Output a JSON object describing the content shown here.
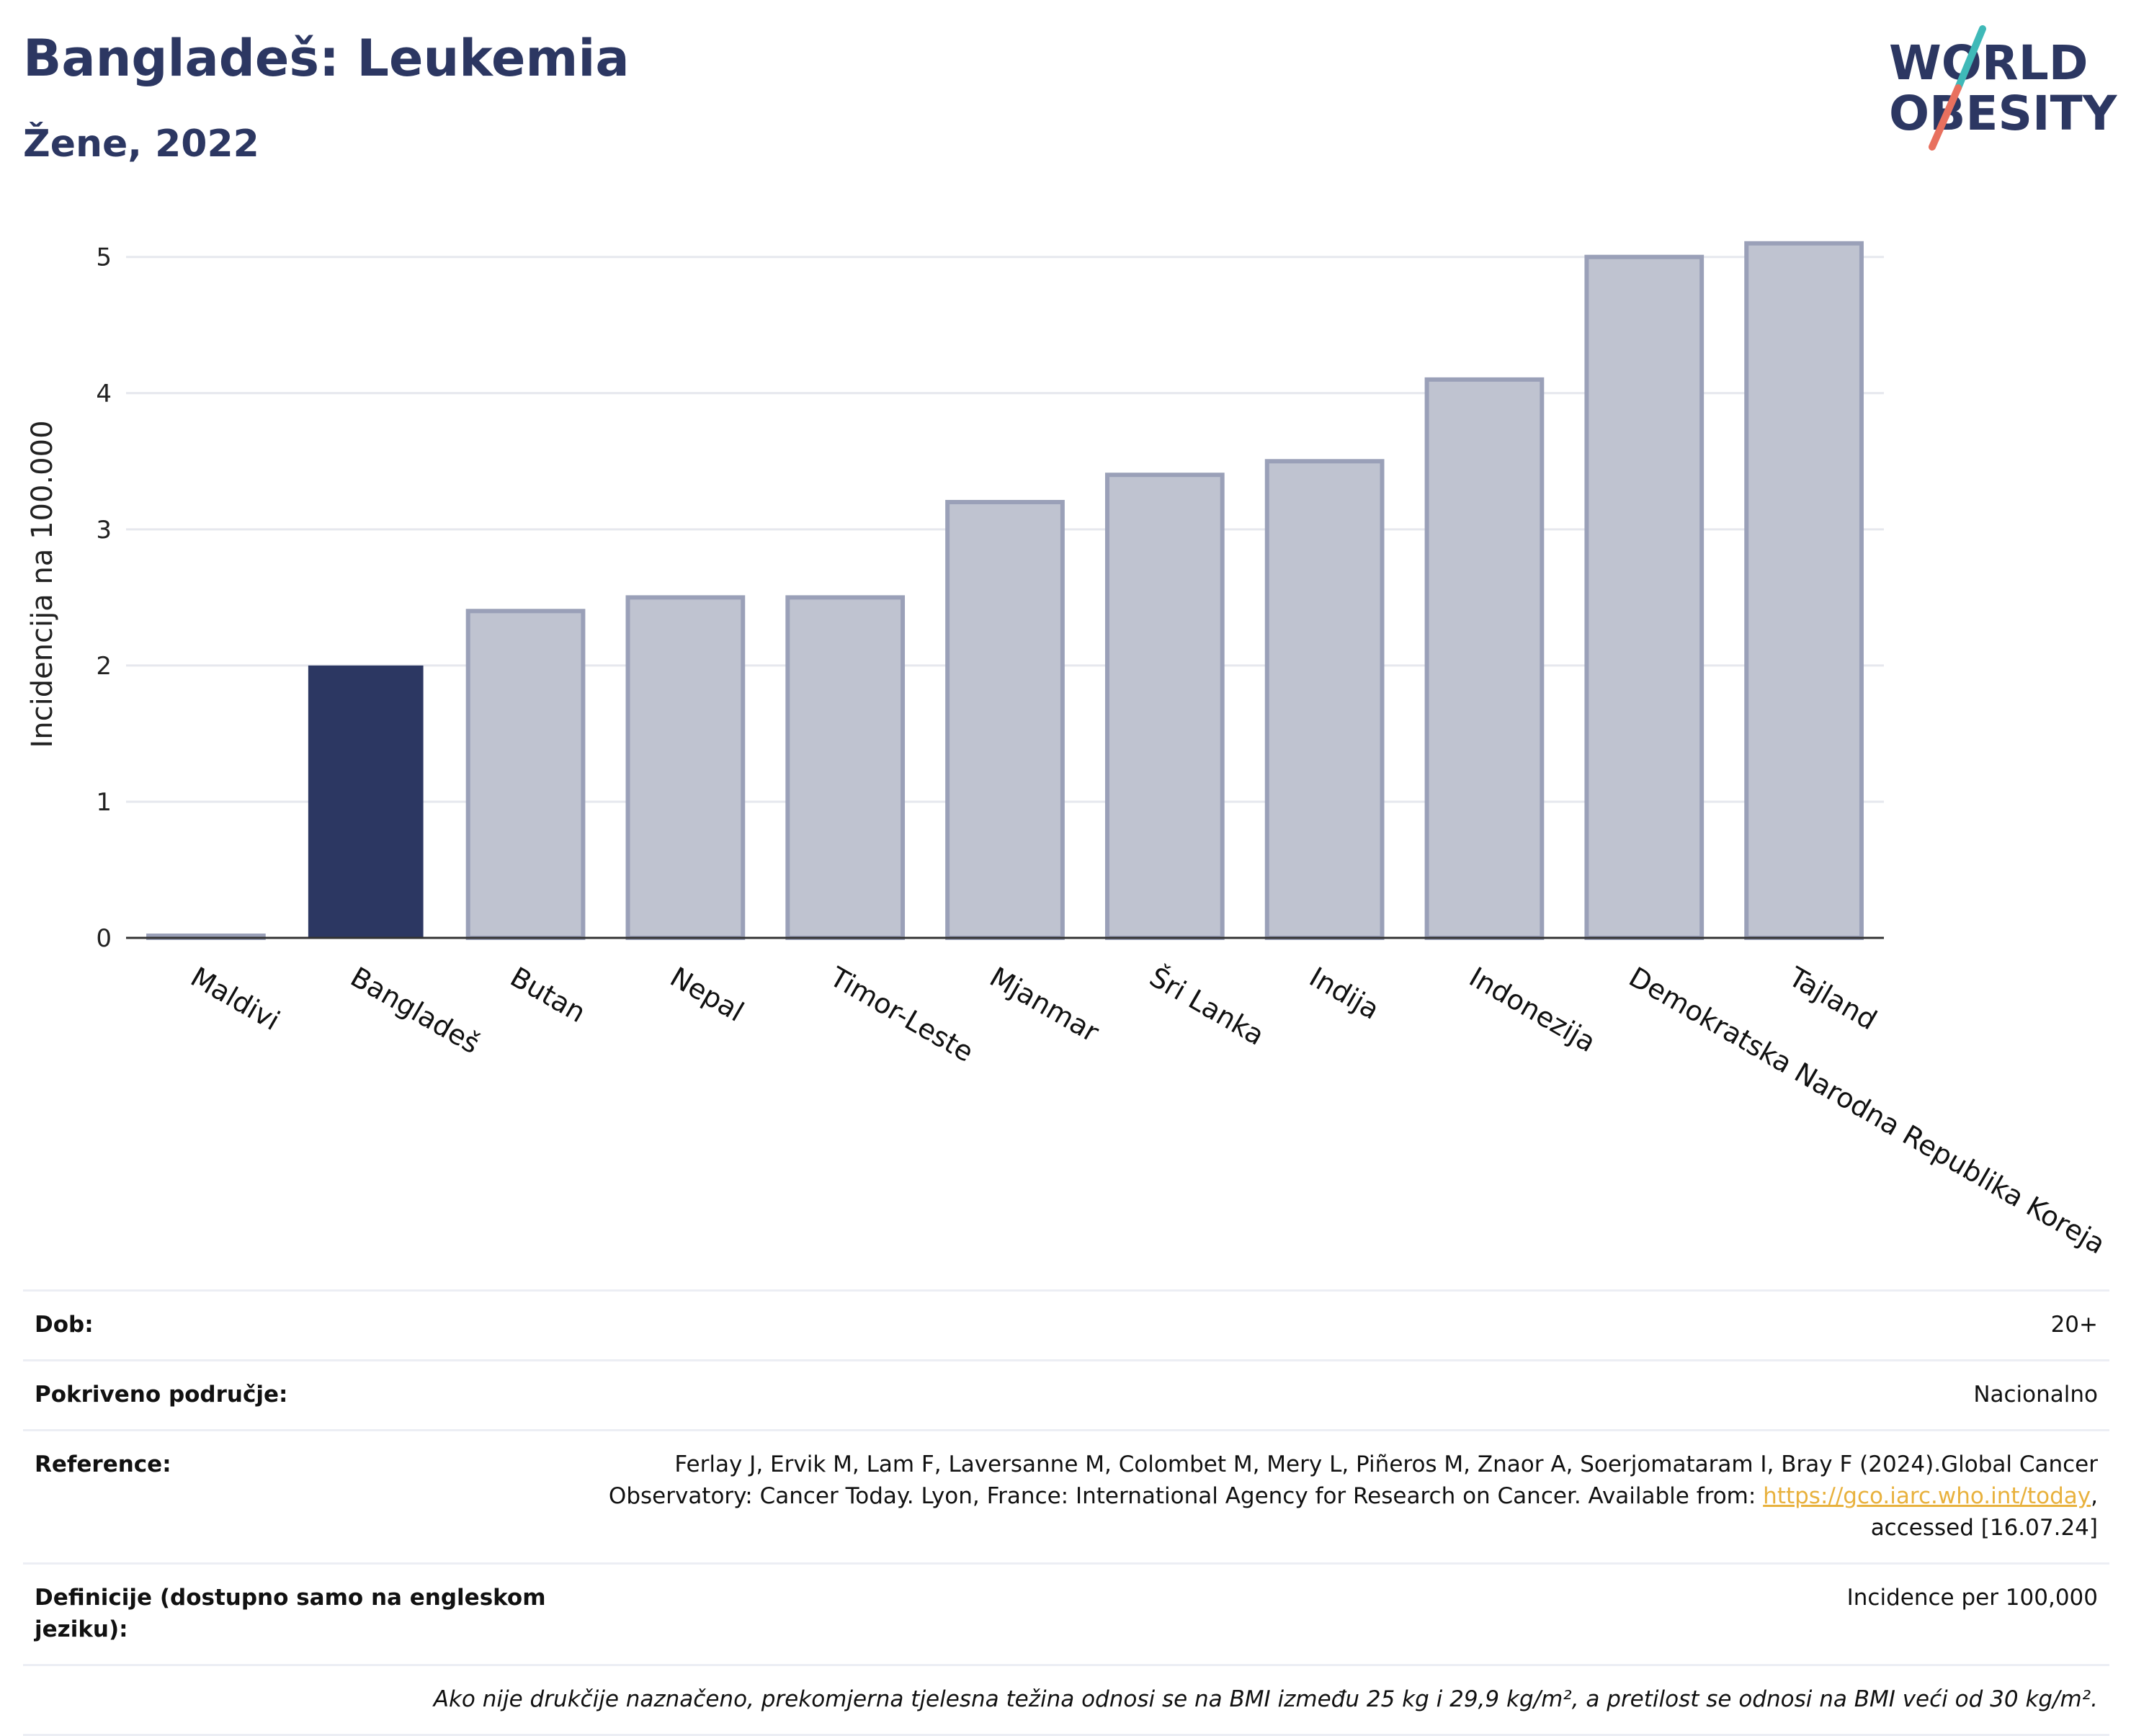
{
  "header": {
    "title": "Bangladeš: Leukemia",
    "subtitle": "Žene, 2022"
  },
  "logo": {
    "line1": "WORLD",
    "line2": "OBESITY",
    "colors": {
      "text": "#2c3762",
      "slash_top": "#3fb9b8",
      "slash_bottom": "#e8705e"
    }
  },
  "chart_data": {
    "type": "bar",
    "categories": [
      "Maldivi",
      "Bangladeš",
      "Butan",
      "Nepal",
      "Timor-Leste",
      "Mjanmar",
      "Šri Lanka",
      "Indija",
      "Indonezija",
      "Demokratska Narodna Republika Koreja",
      "Tajland"
    ],
    "values": [
      0.0,
      2.0,
      2.4,
      2.5,
      2.5,
      3.2,
      3.4,
      3.5,
      4.1,
      5.0,
      5.1
    ],
    "highlight": "Bangladeš",
    "ylabel": "Incidencija na 100.000",
    "xlabel": "",
    "ylim": [
      0,
      5.3
    ],
    "yticks": [
      0,
      1,
      2,
      3,
      4,
      5
    ],
    "grid": true,
    "colors": {
      "highlight": "#2c3762",
      "other": "#bfc3d0",
      "other_border": "#9aa0b8",
      "grid": "#e6e8ee",
      "axis": "#333333"
    }
  },
  "info": {
    "rows": [
      {
        "label": "Dob:",
        "value": "20+"
      },
      {
        "label": "Pokriveno područje:",
        "value": "Nacionalno"
      },
      {
        "label": "Reference:",
        "value_before": "Ferlay J, Ervik M, Lam F, Laversanne M, Colombet M, Mery L, Piñeros M, Znaor A, Soerjomataram I, Bray F (2024).Global Cancer Observatory: Cancer Today. Lyon, France: International Agency for Research on Cancer. Available from: ",
        "link": "https://gco.iarc.who.int/today",
        "value_after": ", accessed [16.07.24]"
      },
      {
        "label": "Definicije (dostupno samo na engleskom jeziku):",
        "value": "Incidence per 100,000"
      }
    ],
    "note": "Ako nije drukčije naznačeno, prekomjerna tjelesna težina odnosi se na BMI između 25 kg i 29,9 kg/m², a pretilost se odnosi na BMI veći od 30 kg/m²."
  }
}
